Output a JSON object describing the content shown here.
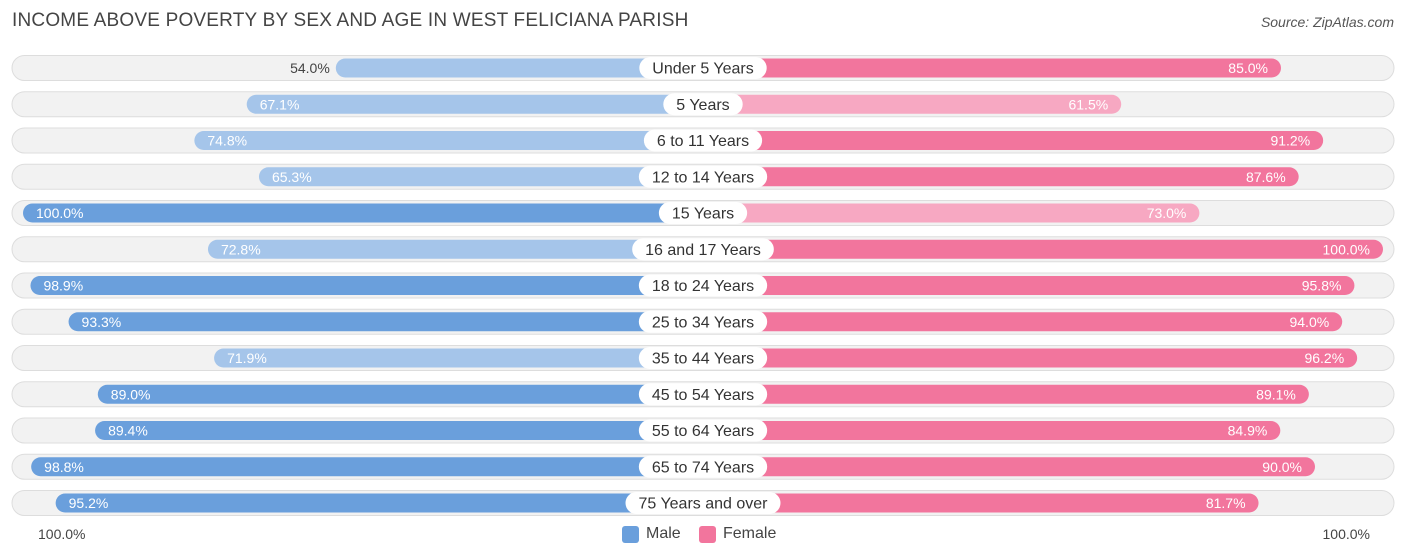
{
  "title": "INCOME ABOVE POVERTY BY SEX AND AGE IN WEST FELICIANA PARISH",
  "source": "Source: ZipAtlas.com",
  "axis": {
    "left_label": "100.0%",
    "right_label": "100.0%"
  },
  "legend": {
    "male_label": "Male",
    "female_label": "Female"
  },
  "colors": {
    "male_strong": "#6a9fdc",
    "male_light": "#a5c5ea",
    "female_strong": "#f2759d",
    "female_light": "#f7a8c2",
    "row_bg": "#f2f2f2",
    "row_border": "#dddddd"
  },
  "chart_data": {
    "type": "bar",
    "orientation": "diverging-horizontal",
    "xlim": [
      0,
      100
    ],
    "categories": [
      "Under 5 Years",
      "5 Years",
      "6 to 11 Years",
      "12 to 14 Years",
      "15 Years",
      "16 and 17 Years",
      "18 to 24 Years",
      "25 to 34 Years",
      "35 to 44 Years",
      "45 to 54 Years",
      "55 to 64 Years",
      "65 to 74 Years",
      "75 Years and over"
    ],
    "series": [
      {
        "name": "Male",
        "values": [
          54.0,
          67.1,
          74.8,
          65.3,
          100.0,
          72.8,
          98.9,
          93.3,
          71.9,
          89.0,
          89.4,
          98.8,
          95.2
        ],
        "labels": [
          "54.0%",
          "67.1%",
          "74.8%",
          "65.3%",
          "100.0%",
          "72.8%",
          "98.9%",
          "93.3%",
          "71.9%",
          "89.0%",
          "89.4%",
          "98.8%",
          "95.2%"
        ]
      },
      {
        "name": "Female",
        "values": [
          85.0,
          61.5,
          91.2,
          87.6,
          73.0,
          100.0,
          95.8,
          94.0,
          96.2,
          89.1,
          84.9,
          90.0,
          81.7
        ],
        "labels": [
          "85.0%",
          "61.5%",
          "91.2%",
          "87.6%",
          "73.0%",
          "100.0%",
          "95.8%",
          "94.0%",
          "96.2%",
          "89.1%",
          "84.9%",
          "90.0%",
          "81.7%"
        ]
      }
    ]
  }
}
